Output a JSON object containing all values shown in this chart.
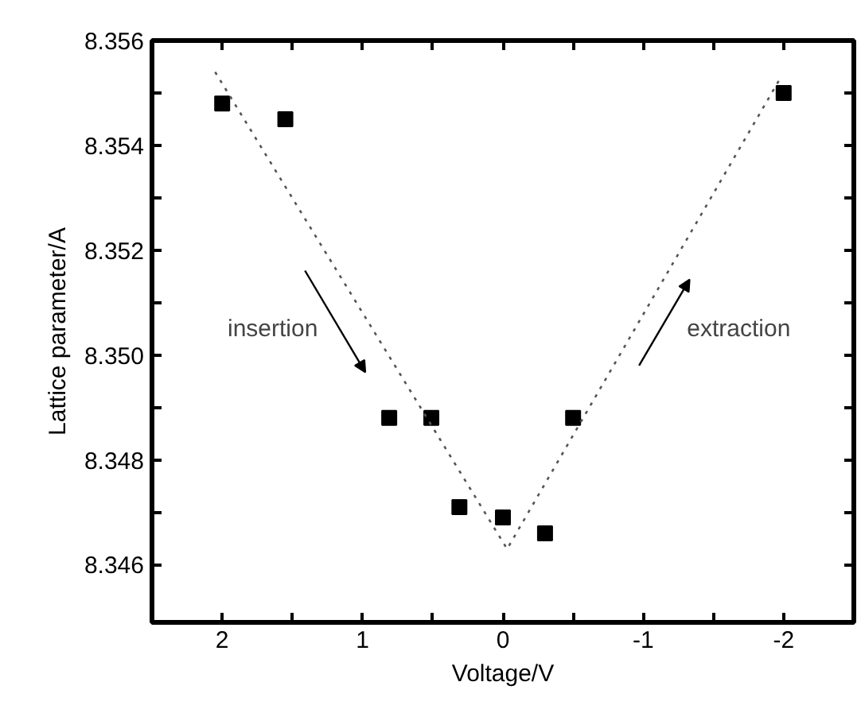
{
  "chart_data": {
    "type": "scatter",
    "xlabel": "Voltage/V",
    "ylabel": "Lattice parameter/A",
    "xlim": [
      2.5,
      -2.5
    ],
    "ylim": [
      8.3449,
      8.356
    ],
    "xticks": [
      2,
      {
        "value": 1.5,
        "label": null
      },
      1,
      {
        "value": 0.5,
        "label": null
      },
      0,
      {
        "value": -0.5,
        "label": null
      },
      -1,
      {
        "value": -1.5,
        "label": null
      },
      -2
    ],
    "yticks": [
      {
        "value": 8.346,
        "label": "8.346"
      },
      {
        "value": 8.347,
        "label": null
      },
      {
        "value": 8.348,
        "label": "8.348"
      },
      {
        "value": 8.349,
        "label": null
      },
      {
        "value": 8.35,
        "label": "8.350"
      },
      {
        "value": 8.351,
        "label": null
      },
      {
        "value": 8.352,
        "label": "8.352"
      },
      {
        "value": 8.353,
        "label": null
      },
      {
        "value": 8.354,
        "label": "8.354"
      },
      {
        "value": 8.355,
        "label": null
      },
      {
        "value": 8.356,
        "label": "8.356"
      }
    ],
    "grid": false,
    "series": [
      {
        "color": "#000000",
        "marker": "square",
        "x": [
          2,
          1.55,
          0.81,
          0.51,
          0.31,
          0,
          -0.3,
          -0.5,
          -2
        ],
        "values": [
          8.3548,
          8.3545,
          8.3488,
          8.3488,
          8.3471,
          8.3469,
          8.3466,
          8.3488,
          8.355
        ]
      },
      {
        "type": "line",
        "color": "#555555",
        "line_style": "dotted",
        "x": [
          2.05,
          -0.03,
          -1.98
        ],
        "values": [
          8.3554,
          8.3463,
          8.3553
        ]
      }
    ],
    "annotations": [
      "insertion",
      "extraction"
    ]
  }
}
